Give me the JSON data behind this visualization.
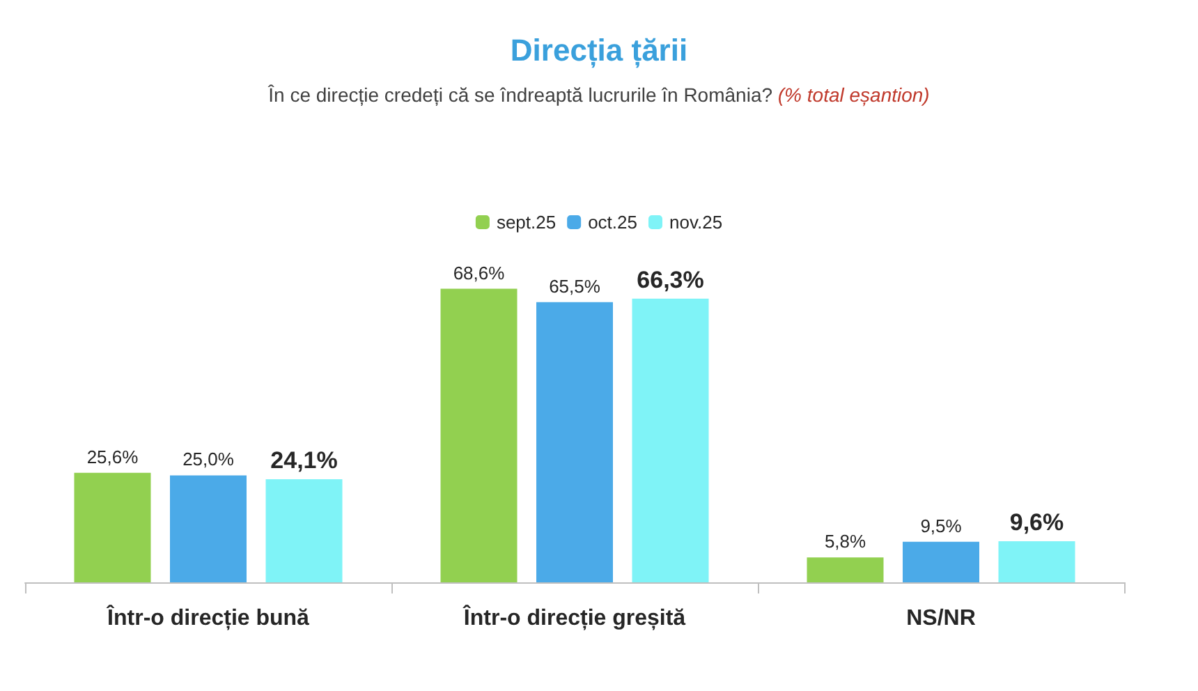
{
  "chart_data": {
    "type": "bar",
    "title": "Direcția țării",
    "subtitle": "În ce direcție credeți că se îndreaptă lucrurile în România?",
    "annotations": [
      "(% total eșantion)"
    ],
    "categories": [
      "Într-o direcție bună",
      "Într-o direcție greșită",
      "NS/NR"
    ],
    "series": [
      {
        "name": "sept.25",
        "color": "#92d050",
        "values": [
          25.6,
          68.6,
          5.8
        ],
        "value_labels": [
          "25,6%",
          "68,6%",
          "5,8%"
        ]
      },
      {
        "name": "oct.25",
        "color": "#4baae8",
        "values": [
          25.0,
          65.5,
          9.5
        ],
        "value_labels": [
          "25,0%",
          "65,5%",
          "9,5%"
        ]
      },
      {
        "name": "nov.25",
        "color": "#7ff3f7",
        "values": [
          24.1,
          66.3,
          9.6
        ],
        "value_labels": [
          "24,1%",
          "66,3%",
          "9,6%"
        ]
      }
    ],
    "legend": "top",
    "grid": false
  }
}
